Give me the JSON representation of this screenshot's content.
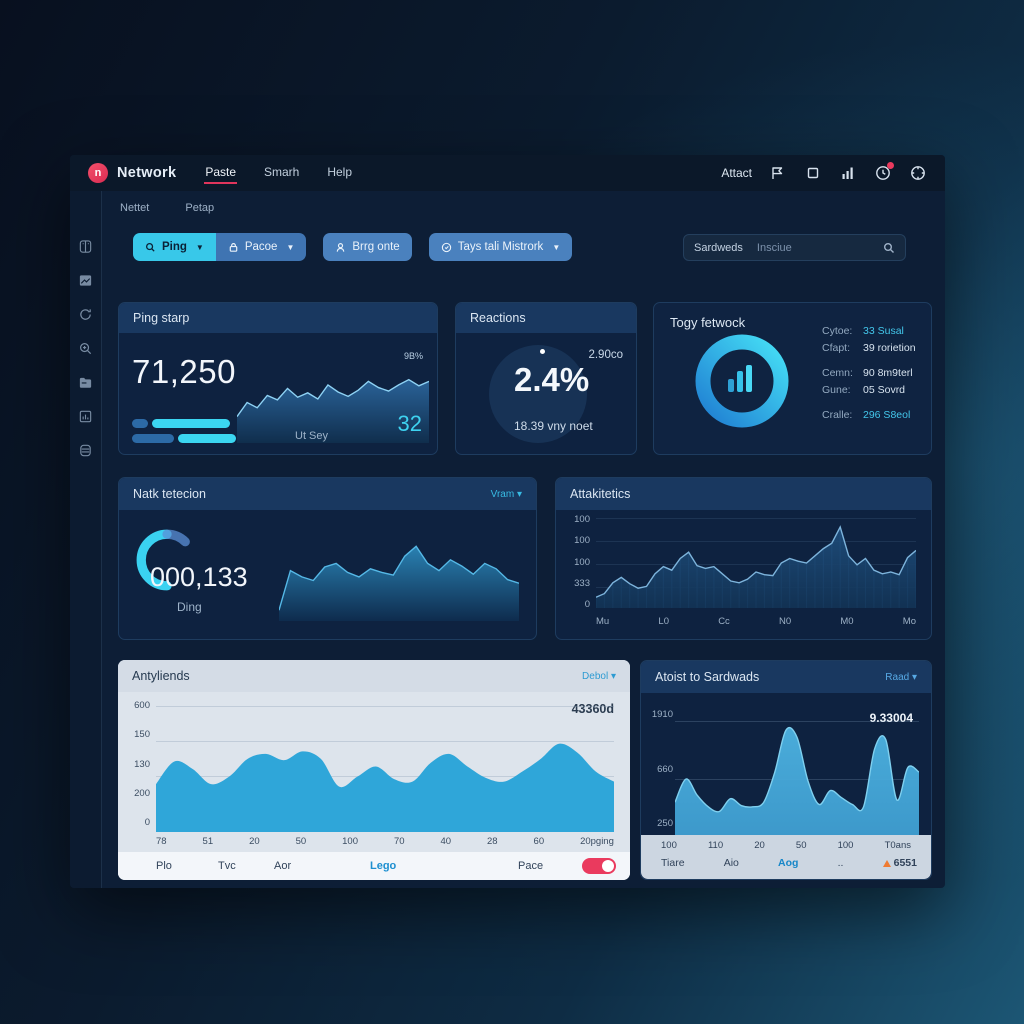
{
  "topbar": {
    "brand": "Network",
    "nav": [
      {
        "label": "Paste"
      },
      {
        "label": "Smarh"
      },
      {
        "label": "Help"
      }
    ],
    "right_label": "Attact",
    "icons": [
      "flag-icon",
      "copy-icon",
      "signal-bars-icon",
      "clock-icon",
      "target-icon"
    ]
  },
  "tabs": [
    {
      "label": "Nettet"
    },
    {
      "label": "Petap"
    }
  ],
  "filters": {
    "ping_chip": "Ping",
    "pacoe_chip": "Pacoe",
    "chip3": "Brrg onte",
    "chip4": "Tays tali Mistrork",
    "search_label": "Sardweds",
    "search_placeholder": "Insciue"
  },
  "cards": {
    "ping": {
      "title": "Ping starp",
      "value": "71,250",
      "footer_label": "Ut Sey",
      "footer_value": "32"
    },
    "reactions": {
      "title": "Reactions",
      "value": "2.4%",
      "corner": "2.90co",
      "sub": "18.39 vny noet"
    },
    "togy": {
      "title": "Togy fetwock",
      "stats": [
        {
          "label": "Cytoe:",
          "value": "33 Susal"
        },
        {
          "label": "Cfapt:",
          "value": "39 rorietion"
        },
        {
          "label": "Cemn:",
          "value": "90 8m9terl"
        },
        {
          "label": "Gune:",
          "value": "05 Sovrd"
        },
        {
          "label": "Cralle:",
          "value": "296 S8eol"
        }
      ]
    },
    "natk": {
      "title": "Natk tetecion",
      "dropdown": "Vram",
      "value": "000,133",
      "label": "Ding"
    },
    "attak": {
      "title": "Attakitetics"
    },
    "anty": {
      "title": "Antyliends",
      "dropdown": "Debol",
      "legend": [
        {
          "label": "Plo"
        },
        {
          "label": "Tvc"
        },
        {
          "label": "Aor"
        },
        {
          "label": "Lego"
        },
        {
          "label": "Pace"
        }
      ],
      "toggle_on": true
    },
    "atoist": {
      "title": "Atoist to Sardwads",
      "dropdown": "Raad",
      "footer": [
        {
          "label": "Tiare"
        },
        {
          "label": "Aio"
        },
        {
          "label": "Aog"
        },
        {
          "label": ".."
        }
      ],
      "alert_value": "6551"
    }
  },
  "chart_data": [
    {
      "id": "ping-spark",
      "type": "area",
      "mount": "#chart-ping",
      "smooth": false,
      "values": [
        30,
        46,
        40,
        54,
        49,
        62,
        52,
        57,
        50,
        66,
        58,
        53,
        60,
        70,
        63,
        59,
        66,
        72,
        65,
        70
      ],
      "ylim": [
        0,
        100
      ],
      "annotation": "9B%",
      "stroke": "#8ed2f4",
      "fill_top": "#2f6ea8",
      "fill_bottom": "#10304f",
      "fill_opacity": 0.85
    },
    {
      "id": "natk-area",
      "type": "area",
      "mount": "#chart-natk",
      "smooth": false,
      "values": [
        12,
        56,
        49,
        45,
        60,
        64,
        54,
        49,
        58,
        54,
        51,
        72,
        83,
        64,
        56,
        68,
        61,
        52,
        64,
        58,
        46,
        42
      ],
      "ylim": [
        0,
        100
      ],
      "stroke": "#55b8e6",
      "fill_top": "#2b86b8",
      "fill_bottom": "#0e2c4e",
      "fill_opacity": 0.95
    },
    {
      "id": "attak",
      "type": "area",
      "mount": "#chart-attak",
      "smooth": false,
      "bars": true,
      "values": [
        12,
        16,
        28,
        34,
        27,
        22,
        24,
        38,
        46,
        42,
        55,
        62,
        47,
        44,
        46,
        38,
        30,
        28,
        32,
        40,
        37,
        36,
        50,
        55,
        52,
        50,
        58,
        66,
        72,
        90,
        58,
        48,
        55,
        42,
        38,
        40,
        37,
        56,
        64
      ],
      "ylim": [
        0,
        100
      ],
      "yticks": [
        "100",
        "100",
        "100",
        "333",
        "0"
      ],
      "xticks": [
        "Mu",
        "L0",
        "Cc",
        "N0",
        "M0",
        "Mo"
      ],
      "grid": true,
      "legend_position": "none",
      "stroke": "#7db4dc",
      "fill_top": "#1f4f7e",
      "fill_bottom": "#123355",
      "fill_opacity": 0.9,
      "bar_color": "#2d639b"
    },
    {
      "id": "anty",
      "type": "area",
      "mount": "#chart-anty",
      "smooth": true,
      "values": [
        38,
        56,
        50,
        38,
        44,
        58,
        62,
        57,
        64,
        58,
        36,
        44,
        52,
        42,
        40,
        55,
        62,
        52,
        43,
        40,
        48,
        58,
        70,
        63,
        48,
        40
      ],
      "ylim": [
        0,
        100
      ],
      "yticks": [
        "600",
        "150",
        "130",
        "200",
        "0"
      ],
      "xticks": [
        "78",
        "51",
        "20",
        "50",
        "100",
        "70",
        "40",
        "28",
        "60",
        "20pging"
      ],
      "value_label": "43360d",
      "grid": true,
      "stroke": "none",
      "fill_top": "#2fa6d9",
      "fill_bottom": "#2fa6d9",
      "fill_opacity": 1
    },
    {
      "id": "atoist",
      "type": "area",
      "mount": "#chart-atoist",
      "smooth": true,
      "values": [
        30,
        50,
        36,
        26,
        22,
        33,
        27,
        26,
        30,
        56,
        92,
        86,
        48,
        28,
        40,
        34,
        28,
        26,
        76,
        84,
        32,
        60,
        56
      ],
      "ylim": [
        0,
        100
      ],
      "yticks": [
        "1910",
        "660",
        "250"
      ],
      "xticks": [
        "100",
        "110",
        "20",
        "50",
        "100",
        "T0ans"
      ],
      "value_label": "9.33004",
      "grid": true,
      "stroke": "#7fd0ef",
      "fill_top": "#4db3e2",
      "fill_bottom": "#3f9fd2",
      "fill_opacity": 0.95
    },
    {
      "id": "togy-donut",
      "type": "donut",
      "colors": [
        "#46e0f6",
        "#1f7ed2"
      ]
    },
    {
      "id": "natk-gauge",
      "type": "gauge",
      "colors": [
        "#3ad2f1",
        "#5b8fd6"
      ]
    }
  ]
}
